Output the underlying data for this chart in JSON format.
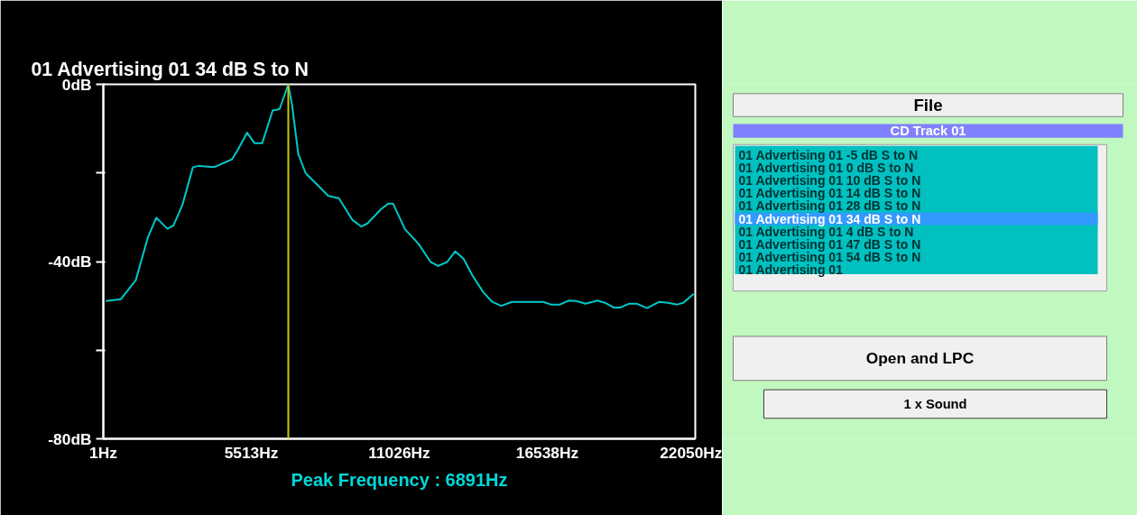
{
  "chart_data": [
    {
      "type": "line",
      "title": "01 Advertising 01 34 dB S to N",
      "xlabel": "Peak Frequency : 6891Hz",
      "x": [
        92,
        650,
        1211,
        1658,
        1974,
        2387,
        2612,
        2949,
        3338,
        3564,
        4125,
        4797,
        5019,
        5355,
        5637,
        5916,
        6310,
        6565,
        6891,
        7035,
        7261,
        7540,
        7876,
        8380,
        8774,
        9278,
        9613,
        9838,
        10343,
        10622,
        10790,
        11237,
        11741,
        12192,
        12470,
        12806,
        13109,
        13421,
        13757,
        14150,
        14486,
        14822,
        15215,
        16392,
        16671,
        17007,
        17343,
        17622,
        17958,
        18408,
        18687,
        19023,
        19248,
        19584,
        19863,
        20257,
        20704,
        21040,
        21376,
        21601,
        21991
      ],
      "series": [
        {
          "color": "#00c8c8",
          "values": [
            -48.9,
            -48.5,
            -44.2,
            -34.6,
            -30.1,
            -32.6,
            -31.9,
            -27.2,
            -18.7,
            -18.4,
            -18.7,
            -16.9,
            -14.7,
            -10.9,
            -13.3,
            -13.3,
            -5.9,
            -5.6,
            0,
            -4.8,
            -15.7,
            -20.1,
            -22.1,
            -25.2,
            -25.7,
            -30.6,
            -32.1,
            -31.4,
            -28.2,
            -26.9,
            -26.9,
            -32.7,
            -36.0,
            -40.1,
            -41.0,
            -40.1,
            -37.7,
            -39.4,
            -43.2,
            -46.9,
            -49.1,
            -50.0,
            -49.1,
            -49.1,
            -49.7,
            -49.7,
            -48.8,
            -48.9,
            -49.5,
            -48.8,
            -49.3,
            -50.4,
            -50.4,
            -49.5,
            -49.5,
            -50.5,
            -49.1,
            -49.3,
            -49.7,
            -49.3,
            -47.3
          ]
        }
      ],
      "xlim": [
        1,
        22050
      ],
      "xticks": [
        {
          "value": 1,
          "label": "1Hz"
        },
        {
          "value": 5513,
          "label": "5513Hz"
        },
        {
          "value": 11026,
          "label": "11026Hz"
        },
        {
          "value": 16538,
          "label": "16538Hz"
        },
        {
          "value": 22050,
          "label": "22050Hz"
        }
      ],
      "ylim": [
        -80,
        0
      ],
      "yticks": [
        {
          "value": 0,
          "label": "0dB"
        },
        {
          "value": -20,
          "label": null
        },
        {
          "value": -40,
          "label": "-40dB"
        },
        {
          "value": -60,
          "label": null
        },
        {
          "value": -80,
          "label": "-80dB"
        }
      ],
      "ref_lines": [
        {
          "axis": "x",
          "value": 6891,
          "color": "#c8c800"
        }
      ],
      "grid": false,
      "marker": "none",
      "line_style": "solid"
    },
    {
      "type": "other",
      "annotations": [
        "File",
        "CD Track 01",
        "01 Advertising 01 -5 dB S to N",
        "01 Advertising 01 0 dB S to N",
        "01 Advertising 01 10 dB S to N",
        "01 Advertising 01 14 dB S to N",
        "01 Advertising 01 28 dB S to N",
        "01 Advertising 01 34 dB S to N",
        "01 Advertising 01 4 dB S to N",
        "01 Advertising 01 47 dB S to N",
        "01 Advertising 01 54 dB S to N",
        "01 Advertising 01",
        "Open and LPC",
        "1 x Sound"
      ]
    }
  ]
}
